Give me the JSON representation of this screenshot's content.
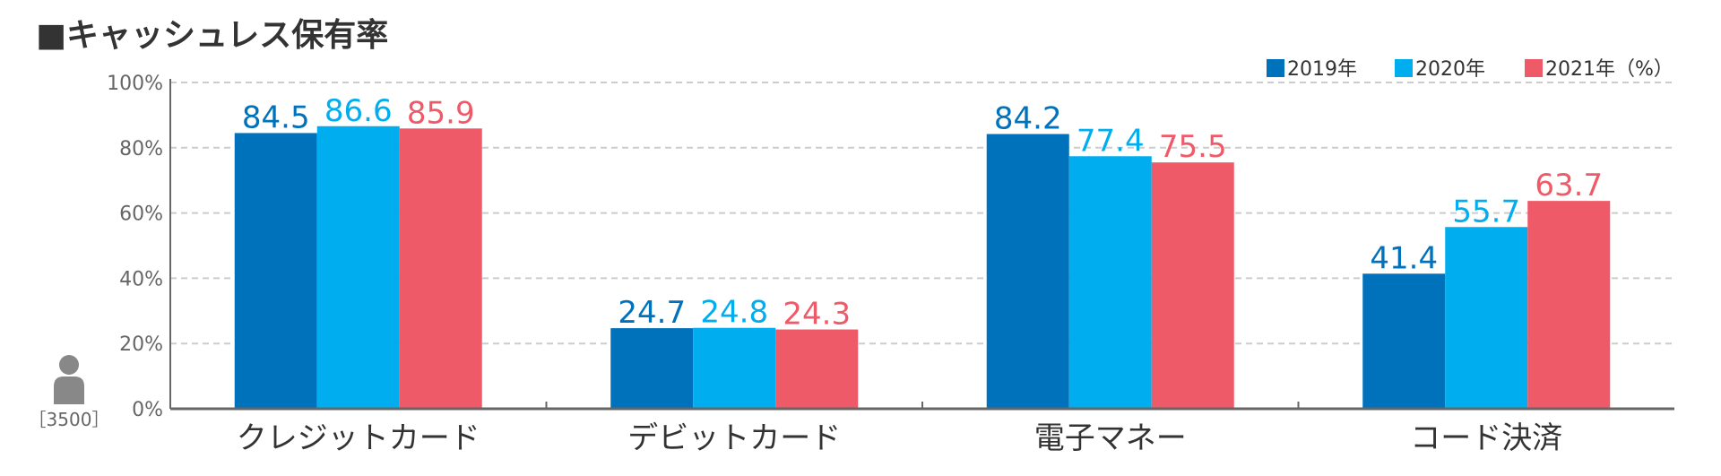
{
  "chart_data": {
    "type": "bar",
    "title": "■キャッシュレス保有率",
    "categories": [
      "クレジットカード",
      "デビットカード",
      "電子マネー",
      "コード決済"
    ],
    "series": [
      {
        "name": "2019年",
        "values": [
          84.5,
          24.7,
          84.2,
          41.4
        ]
      },
      {
        "name": "2020年",
        "values": [
          86.6,
          24.8,
          77.4,
          55.7
        ]
      },
      {
        "name": "2021年",
        "values": [
          85.9,
          24.3,
          75.5,
          63.7
        ]
      }
    ],
    "legend_suffix": "（%）",
    "legend_position": "top-right",
    "ylim": [
      0,
      100
    ],
    "yticks": [
      "0%",
      "20%",
      "40%",
      "60%",
      "80%",
      "100%"
    ],
    "grid": true,
    "sample_size": "［3500］",
    "colors": {
      "series": [
        "#0072bc",
        "#00aeef",
        "#ef5a69"
      ],
      "axis": "#666666",
      "grid": "#cccccc",
      "text": "#333333",
      "icon": "#888888"
    },
    "icons": {
      "sample": "person-icon"
    }
  }
}
